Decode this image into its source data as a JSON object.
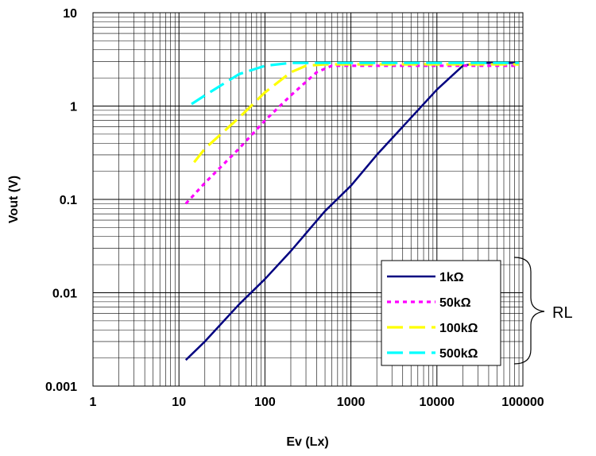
{
  "chart_data": {
    "type": "line",
    "title": "",
    "xlabel": "Ev (Lx)",
    "ylabel": "Vout (V)",
    "xscale": "log",
    "yscale": "log",
    "xlim": [
      1,
      100000
    ],
    "ylim": [
      0.001,
      10
    ],
    "x_ticks": [
      "1",
      "10",
      "100",
      "1000",
      "10000",
      "100000"
    ],
    "y_ticks": [
      "0.001",
      "0.01",
      "0.1",
      "1",
      "10"
    ],
    "grid": true,
    "legend_position": "bottom-right",
    "series": [
      {
        "name": "1kΩ",
        "color": "#000080",
        "style": "solid",
        "x": [
          12,
          20,
          50,
          100,
          200,
          500,
          1000,
          2000,
          5000,
          10000,
          20000,
          30000,
          60000,
          90000
        ],
        "y": [
          0.0019,
          0.003,
          0.0075,
          0.014,
          0.028,
          0.075,
          0.14,
          0.3,
          0.75,
          1.5,
          2.7,
          2.9,
          2.9,
          2.9
        ]
      },
      {
        "name": "50kΩ",
        "color": "#FF00FF",
        "style": "dotted",
        "x": [
          12,
          20,
          50,
          100,
          200,
          400,
          600,
          1000,
          10000,
          90000
        ],
        "y": [
          0.09,
          0.15,
          0.35,
          0.7,
          1.3,
          2.3,
          2.7,
          2.7,
          2.7,
          2.7
        ]
      },
      {
        "name": "100kΩ",
        "color": "#FFFF00",
        "style": "dashed",
        "x": [
          15,
          20,
          50,
          100,
          200,
          300,
          500,
          1000,
          10000,
          90000
        ],
        "y": [
          0.25,
          0.35,
          0.75,
          1.4,
          2.3,
          2.7,
          2.8,
          2.8,
          2.8,
          2.8
        ]
      },
      {
        "name": "500kΩ",
        "color": "#00FFFF",
        "style": "dashed",
        "x": [
          14,
          20,
          50,
          100,
          200,
          300,
          1000,
          10000,
          90000
        ],
        "y": [
          1.05,
          1.3,
          2.2,
          2.7,
          2.9,
          2.9,
          2.9,
          2.9,
          2.9
        ]
      }
    ],
    "annotation": "RL"
  }
}
